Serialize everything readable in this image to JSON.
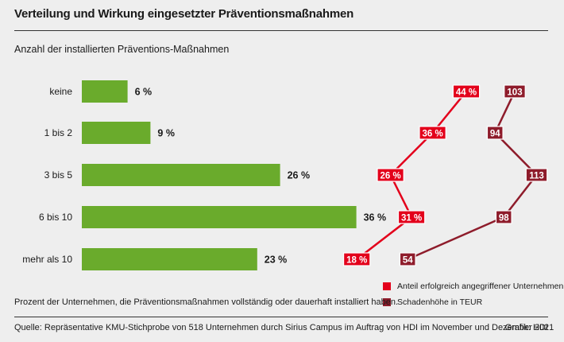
{
  "title": "Verteilung und Wirkung eingesetzter Präventionsmaßnahmen",
  "subtitle": "Anzahl der installierten Präventions-Maßnahmen",
  "note": "Prozent der Unternehmen, die Präventionsmaßnahmen vollständig oder dauerhaft installiert haben.",
  "source": "Quelle: Repräsentative KMU-Stichprobe von 518 Unternehmen durch Sirius Campus im Auftrag von HDI im November und Dezember 2021",
  "credit": "Grafik: HDI",
  "colors": {
    "bar": "#6aab2c",
    "success": "#e3001b",
    "damage": "#8e1c2b"
  },
  "legend": {
    "success": "Anteil erfolgreich angegriffener Unternehmen",
    "damage": "Schadenhöhe in TEUR"
  },
  "chart_data": [
    {
      "type": "bar",
      "orientation": "horizontal",
      "categories": [
        "keine",
        "1 bis 2",
        "3 bis 5",
        "6 bis 10",
        "mehr als 10"
      ],
      "values": [
        6,
        9,
        26,
        36,
        23
      ],
      "value_labels": [
        "6 %",
        "9 %",
        "26 %",
        "36 %",
        "23 %"
      ]
    },
    {
      "type": "line",
      "categories": [
        "keine",
        "1 bis 2",
        "3 bis 5",
        "6 bis 10",
        "mehr als 10"
      ],
      "series": [
        {
          "name": "Anteil erfolgreich angegriffener Unternehmen",
          "values": [
            44,
            36,
            26,
            31,
            18
          ],
          "labels": [
            "44 %",
            "36 %",
            "26 %",
            "31 %",
            "18 %"
          ]
        },
        {
          "name": "Schadenhöhe in TEUR",
          "values": [
            103,
            94,
            113,
            98,
            54
          ],
          "labels": [
            "103",
            "94",
            "113",
            "98",
            "54"
          ]
        }
      ]
    }
  ]
}
